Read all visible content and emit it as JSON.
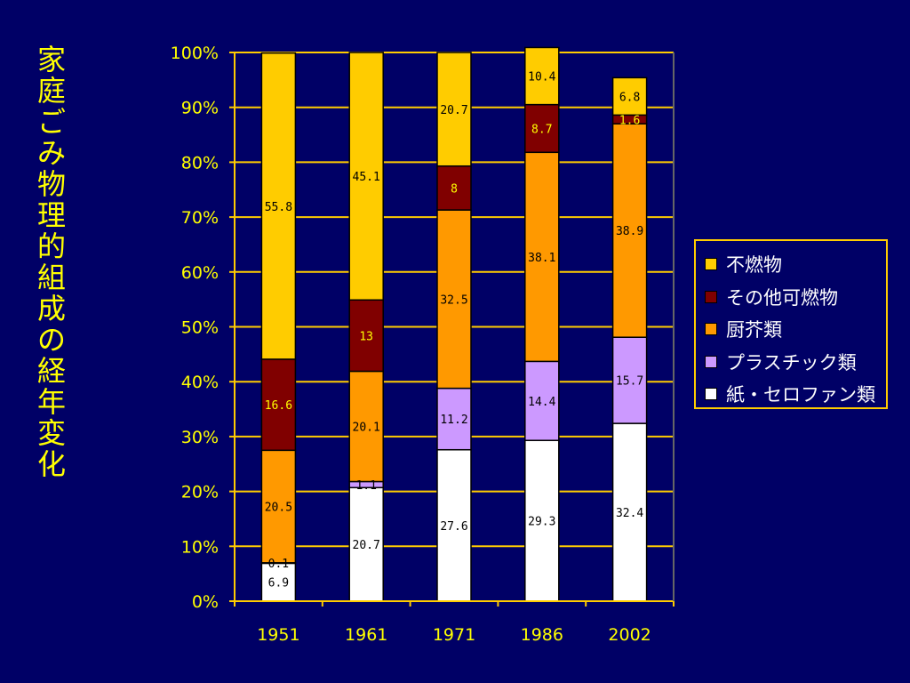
{
  "title": "家庭ごみ　物理的組成の経年変化",
  "chart_data": {
    "type": "bar",
    "stacked": true,
    "percent": true,
    "categories": [
      "1951",
      "1961",
      "1971",
      "1986",
      "2002"
    ],
    "y_ticks": [
      "0%",
      "10%",
      "20%",
      "30%",
      "40%",
      "50%",
      "60%",
      "70%",
      "80%",
      "90%",
      "100%"
    ],
    "ylim": [
      0,
      100
    ],
    "grid": true,
    "legend_position": "right",
    "series": [
      {
        "name": "紙・セロファン類",
        "color": "#FFFFFF",
        "label_color": "#000000",
        "values": [
          6.9,
          20.7,
          27.6,
          29.3,
          32.4
        ],
        "labels": [
          "6.9",
          "20.7",
          "27.6",
          "29.3",
          "32.4"
        ]
      },
      {
        "name": "プラスチック類",
        "color": "#CC99FF",
        "label_color": "#000000",
        "values": [
          0.1,
          1.1,
          11.2,
          14.4,
          15.7
        ],
        "labels": [
          "0.1",
          "1.1",
          "11.2",
          "14.4",
          "15.7"
        ]
      },
      {
        "name": "厨芥類",
        "color": "#FF9900",
        "label_color": "#000000",
        "values": [
          20.5,
          20.1,
          32.5,
          38.1,
          38.9
        ],
        "labels": [
          "20.5",
          "20.1",
          "32.5",
          "38.1",
          "38.9"
        ]
      },
      {
        "name": "その他可燃物",
        "color": "#800000",
        "label_color": "#FFFF00",
        "values": [
          16.6,
          13,
          8,
          8.7,
          1.6
        ],
        "labels": [
          "16.6",
          "13",
          "8",
          "8.7",
          "1.6"
        ]
      },
      {
        "name": "不燃物",
        "color": "#FFCC00",
        "label_color": "#000000",
        "values": [
          55.8,
          45.1,
          20.7,
          10.4,
          6.8
        ],
        "labels": [
          "55.8",
          "45.1",
          "20.7",
          "10.4",
          "6.8"
        ]
      }
    ],
    "legend_order": [
      "不燃物",
      "その他可燃物",
      "厨芥類",
      "プラスチック類",
      "紙・セロファン類"
    ]
  },
  "colors": {
    "background": "#000066",
    "axis": "#FFCC00",
    "grid": "#FFCC00",
    "tick_text": "#FFFF00",
    "title": "#FFFF00"
  }
}
